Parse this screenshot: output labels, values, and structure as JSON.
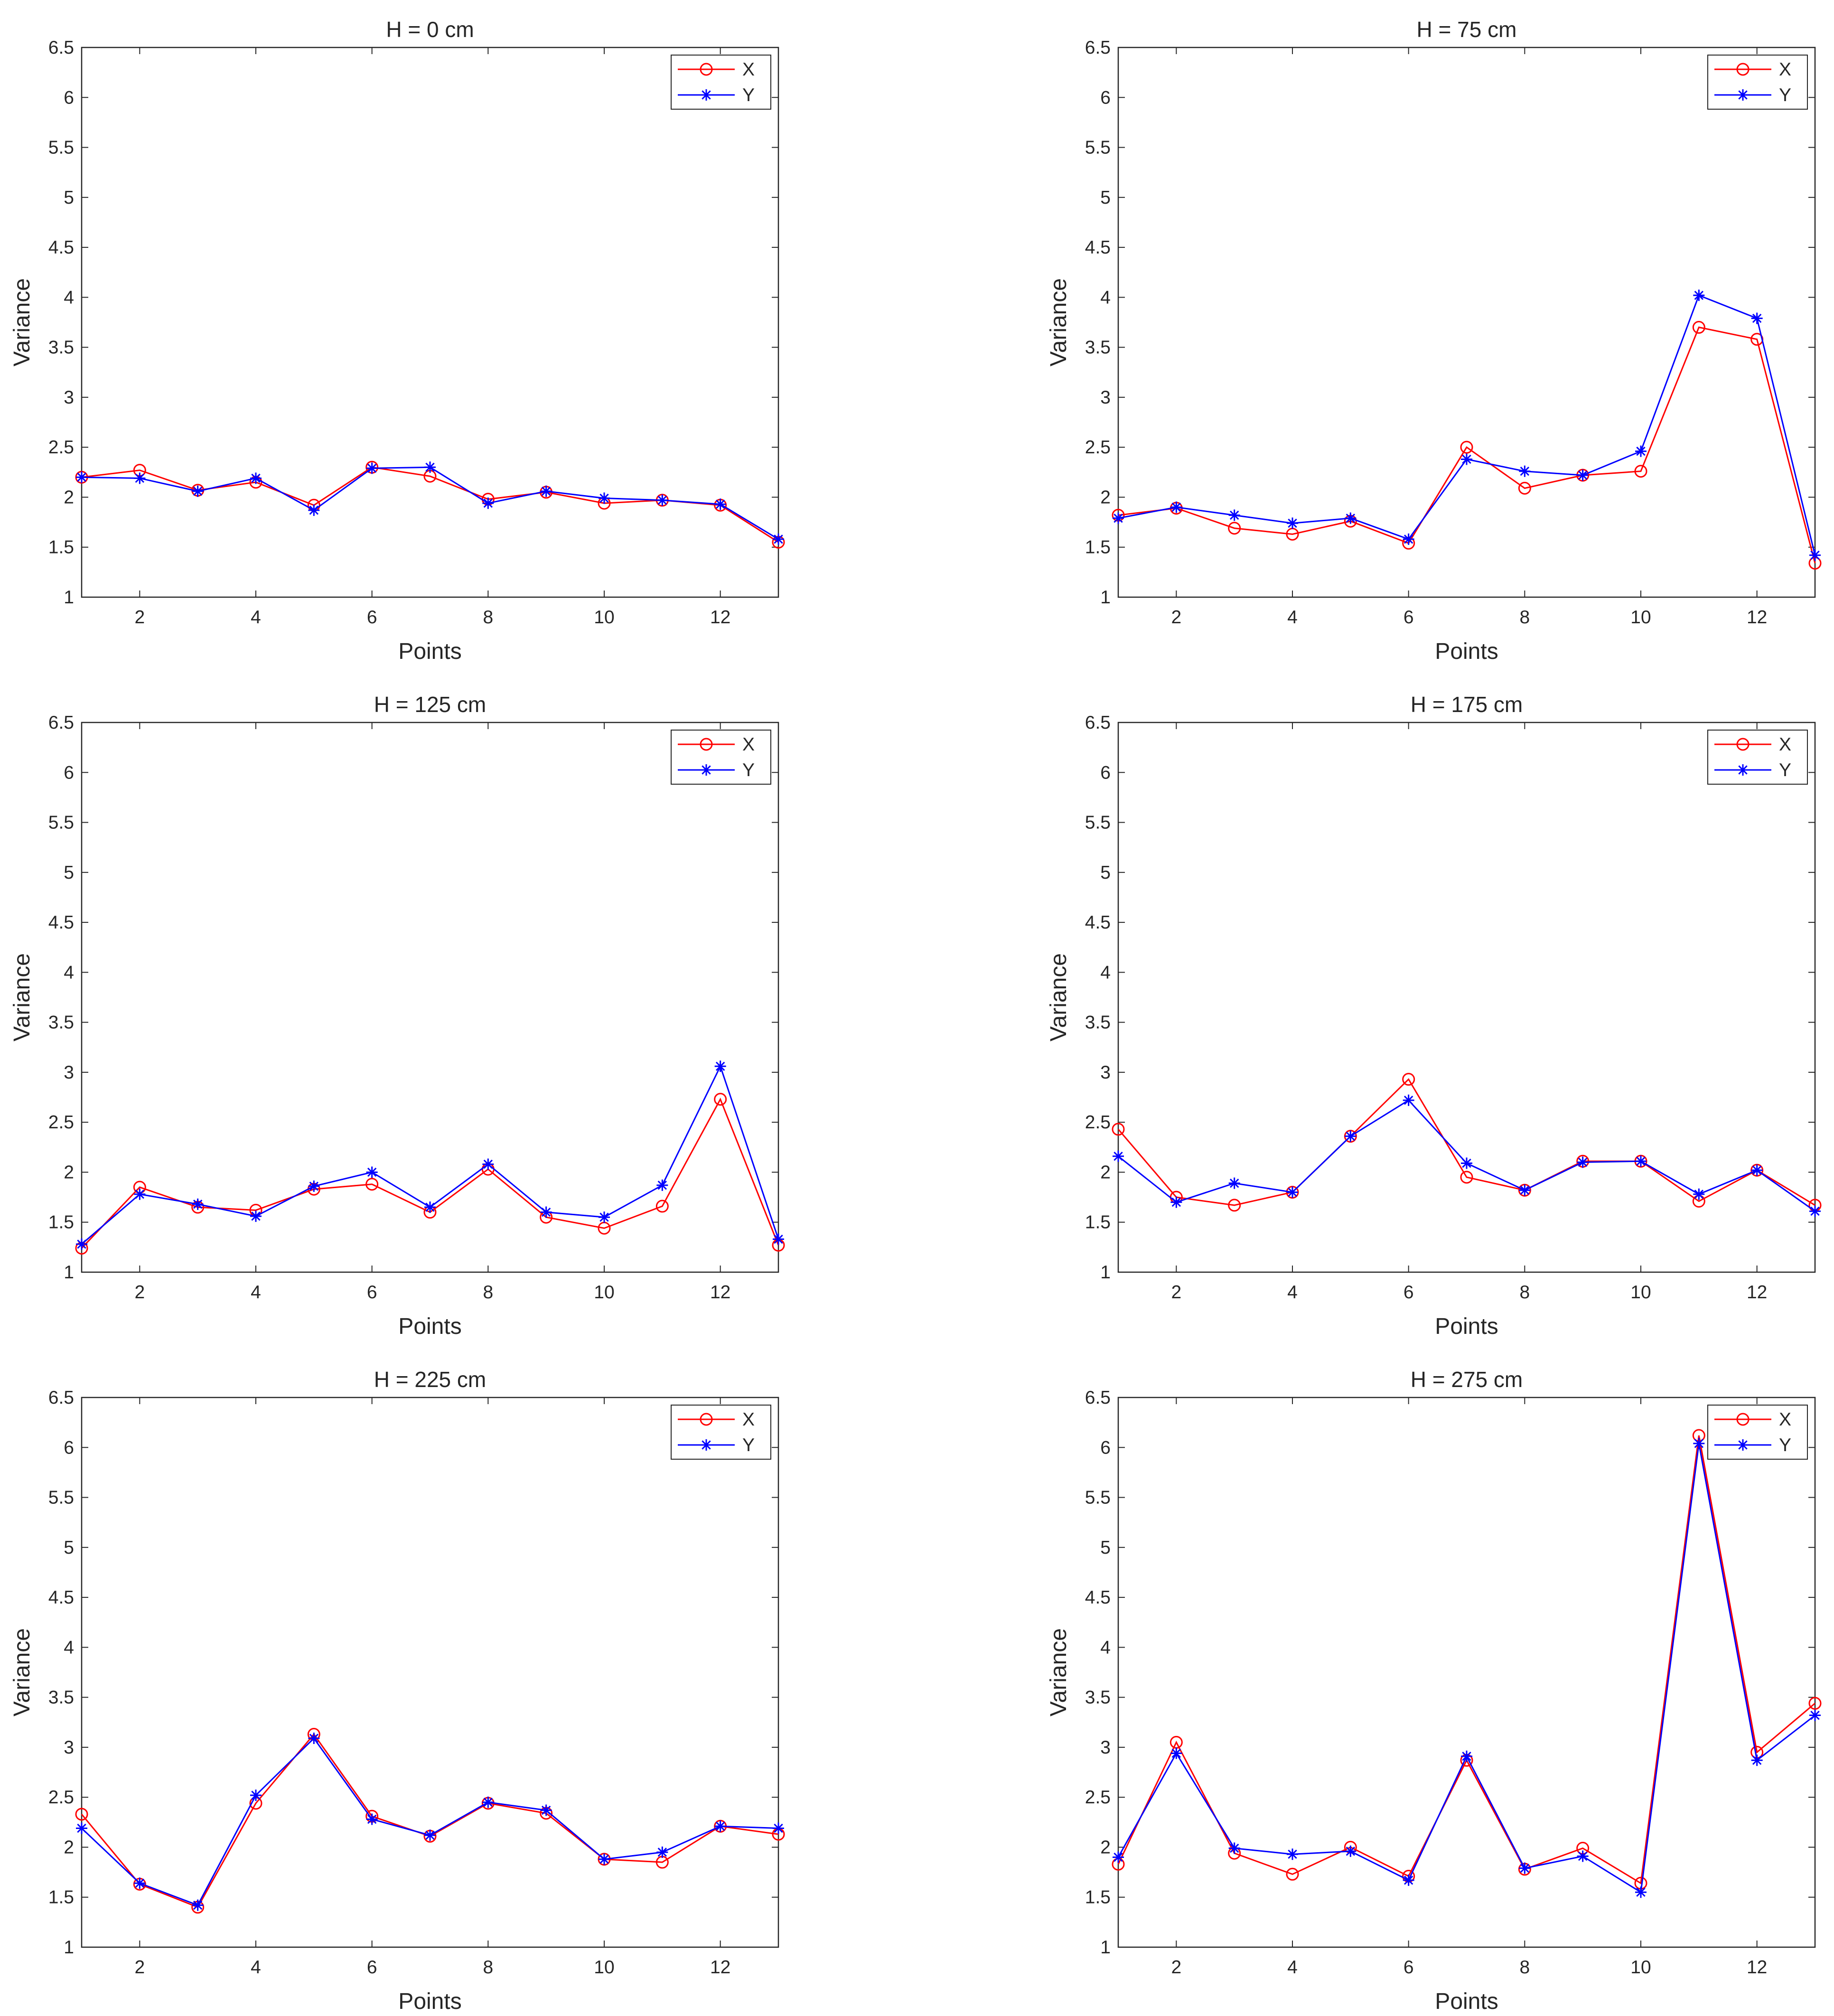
{
  "figure": {
    "colors": {
      "x_series": "#ff0000",
      "y_series": "#0000ff",
      "axis": "#262626",
      "background": "#ffffff"
    }
  },
  "chart_data": [
    {
      "type": "line",
      "title": "H = 0 cm",
      "xlabel": "Points",
      "ylabel": "Variance",
      "xlim": [
        1,
        13
      ],
      "ylim": [
        1,
        6.5
      ],
      "xticks": [
        2,
        4,
        6,
        8,
        10,
        12
      ],
      "yticks": [
        1,
        1.5,
        2,
        2.5,
        3,
        3.5,
        4,
        4.5,
        5,
        5.5,
        6,
        6.5
      ],
      "grid": false,
      "legend_position": "top-right",
      "x": [
        1,
        2,
        3,
        4,
        5,
        6,
        7,
        8,
        9,
        10,
        11,
        12,
        13
      ],
      "series": [
        {
          "name": "X",
          "color": "#ff0000",
          "marker": "circle",
          "values": [
            2.2,
            2.27,
            2.07,
            2.15,
            1.92,
            2.3,
            2.21,
            1.98,
            2.05,
            1.94,
            1.97,
            1.92,
            1.55
          ]
        },
        {
          "name": "Y",
          "color": "#0000ff",
          "marker": "asterisk",
          "values": [
            2.2,
            2.19,
            2.06,
            2.19,
            1.87,
            2.29,
            2.3,
            1.94,
            2.06,
            1.99,
            1.97,
            1.93,
            1.58
          ]
        }
      ]
    },
    {
      "type": "line",
      "title": "H = 75 cm",
      "xlabel": "Points",
      "ylabel": "Variance",
      "xlim": [
        1,
        13
      ],
      "ylim": [
        1,
        6.5
      ],
      "xticks": [
        2,
        4,
        6,
        8,
        10,
        12
      ],
      "yticks": [
        1,
        1.5,
        2,
        2.5,
        3,
        3.5,
        4,
        4.5,
        5,
        5.5,
        6,
        6.5
      ],
      "grid": false,
      "legend_position": "top-right",
      "x": [
        1,
        2,
        3,
        4,
        5,
        6,
        7,
        8,
        9,
        10,
        11,
        12,
        13
      ],
      "series": [
        {
          "name": "X",
          "color": "#ff0000",
          "marker": "circle",
          "values": [
            1.82,
            1.89,
            1.69,
            1.63,
            1.76,
            1.54,
            2.5,
            2.09,
            2.22,
            2.26,
            3.7,
            3.58,
            1.34
          ]
        },
        {
          "name": "Y",
          "color": "#0000ff",
          "marker": "asterisk",
          "values": [
            1.79,
            1.9,
            1.82,
            1.74,
            1.79,
            1.58,
            2.38,
            2.26,
            2.22,
            2.46,
            4.02,
            3.79,
            1.42
          ]
        }
      ]
    },
    {
      "type": "line",
      "title": "H = 125 cm",
      "xlabel": "Points",
      "ylabel": "Variance",
      "xlim": [
        1,
        13
      ],
      "ylim": [
        1,
        6.5
      ],
      "xticks": [
        2,
        4,
        6,
        8,
        10,
        12
      ],
      "yticks": [
        1,
        1.5,
        2,
        2.5,
        3,
        3.5,
        4,
        4.5,
        5,
        5.5,
        6,
        6.5
      ],
      "grid": false,
      "legend_position": "top-right",
      "x": [
        1,
        2,
        3,
        4,
        5,
        6,
        7,
        8,
        9,
        10,
        11,
        12,
        13
      ],
      "series": [
        {
          "name": "X",
          "color": "#ff0000",
          "marker": "circle",
          "values": [
            1.24,
            1.85,
            1.65,
            1.62,
            1.83,
            1.88,
            1.6,
            2.03,
            1.55,
            1.44,
            1.66,
            2.73,
            1.27
          ]
        },
        {
          "name": "Y",
          "color": "#0000ff",
          "marker": "asterisk",
          "values": [
            1.28,
            1.78,
            1.68,
            1.56,
            1.86,
            2.0,
            1.65,
            2.08,
            1.6,
            1.55,
            1.87,
            3.06,
            1.33
          ]
        }
      ]
    },
    {
      "type": "line",
      "title": "H = 175 cm",
      "xlabel": "Points",
      "ylabel": "Variance",
      "xlim": [
        1,
        13
      ],
      "ylim": [
        1,
        6.5
      ],
      "xticks": [
        2,
        4,
        6,
        8,
        10,
        12
      ],
      "yticks": [
        1,
        1.5,
        2,
        2.5,
        3,
        3.5,
        4,
        4.5,
        5,
        5.5,
        6,
        6.5
      ],
      "grid": false,
      "legend_position": "top-right",
      "x": [
        1,
        2,
        3,
        4,
        5,
        6,
        7,
        8,
        9,
        10,
        11,
        12,
        13
      ],
      "series": [
        {
          "name": "X",
          "color": "#ff0000",
          "marker": "circle",
          "values": [
            2.43,
            1.75,
            1.67,
            1.8,
            2.36,
            2.93,
            1.95,
            1.82,
            2.11,
            2.11,
            1.71,
            2.02,
            1.67
          ]
        },
        {
          "name": "Y",
          "color": "#0000ff",
          "marker": "asterisk",
          "values": [
            2.16,
            1.7,
            1.89,
            1.8,
            2.36,
            2.72,
            2.09,
            1.82,
            2.1,
            2.11,
            1.78,
            2.02,
            1.61
          ]
        }
      ]
    },
    {
      "type": "line",
      "title": "H = 225 cm",
      "xlabel": "Points",
      "ylabel": "Variance",
      "xlim": [
        1,
        13
      ],
      "ylim": [
        1,
        6.5
      ],
      "xticks": [
        2,
        4,
        6,
        8,
        10,
        12
      ],
      "yticks": [
        1,
        1.5,
        2,
        2.5,
        3,
        3.5,
        4,
        4.5,
        5,
        5.5,
        6,
        6.5
      ],
      "grid": false,
      "legend_position": "top-right",
      "x": [
        1,
        2,
        3,
        4,
        5,
        6,
        7,
        8,
        9,
        10,
        11,
        12,
        13
      ],
      "series": [
        {
          "name": "X",
          "color": "#ff0000",
          "marker": "circle",
          "values": [
            2.33,
            1.63,
            1.4,
            2.44,
            3.13,
            2.31,
            2.11,
            2.44,
            2.34,
            1.88,
            1.85,
            2.21,
            2.13
          ]
        },
        {
          "name": "Y",
          "color": "#0000ff",
          "marker": "asterisk",
          "values": [
            2.19,
            1.64,
            1.42,
            2.52,
            3.09,
            2.28,
            2.12,
            2.45,
            2.37,
            1.88,
            1.95,
            2.21,
            2.19
          ]
        }
      ]
    },
    {
      "type": "line",
      "title": "H = 275 cm",
      "xlabel": "Points",
      "ylabel": "Variance",
      "xlim": [
        1,
        13
      ],
      "ylim": [
        1,
        6.5
      ],
      "xticks": [
        2,
        4,
        6,
        8,
        10,
        12
      ],
      "yticks": [
        1,
        1.5,
        2,
        2.5,
        3,
        3.5,
        4,
        4.5,
        5,
        5.5,
        6,
        6.5
      ],
      "grid": false,
      "legend_position": "top-right",
      "x": [
        1,
        2,
        3,
        4,
        5,
        6,
        7,
        8,
        9,
        10,
        11,
        12,
        13
      ],
      "series": [
        {
          "name": "X",
          "color": "#ff0000",
          "marker": "circle",
          "values": [
            1.83,
            3.05,
            1.94,
            1.73,
            2.0,
            1.71,
            2.87,
            1.78,
            1.99,
            1.64,
            6.12,
            2.95,
            3.44
          ]
        },
        {
          "name": "Y",
          "color": "#0000ff",
          "marker": "asterisk",
          "values": [
            1.9,
            2.94,
            1.99,
            1.93,
            1.96,
            1.67,
            2.91,
            1.79,
            1.91,
            1.55,
            6.04,
            2.87,
            3.32
          ]
        }
      ]
    }
  ]
}
